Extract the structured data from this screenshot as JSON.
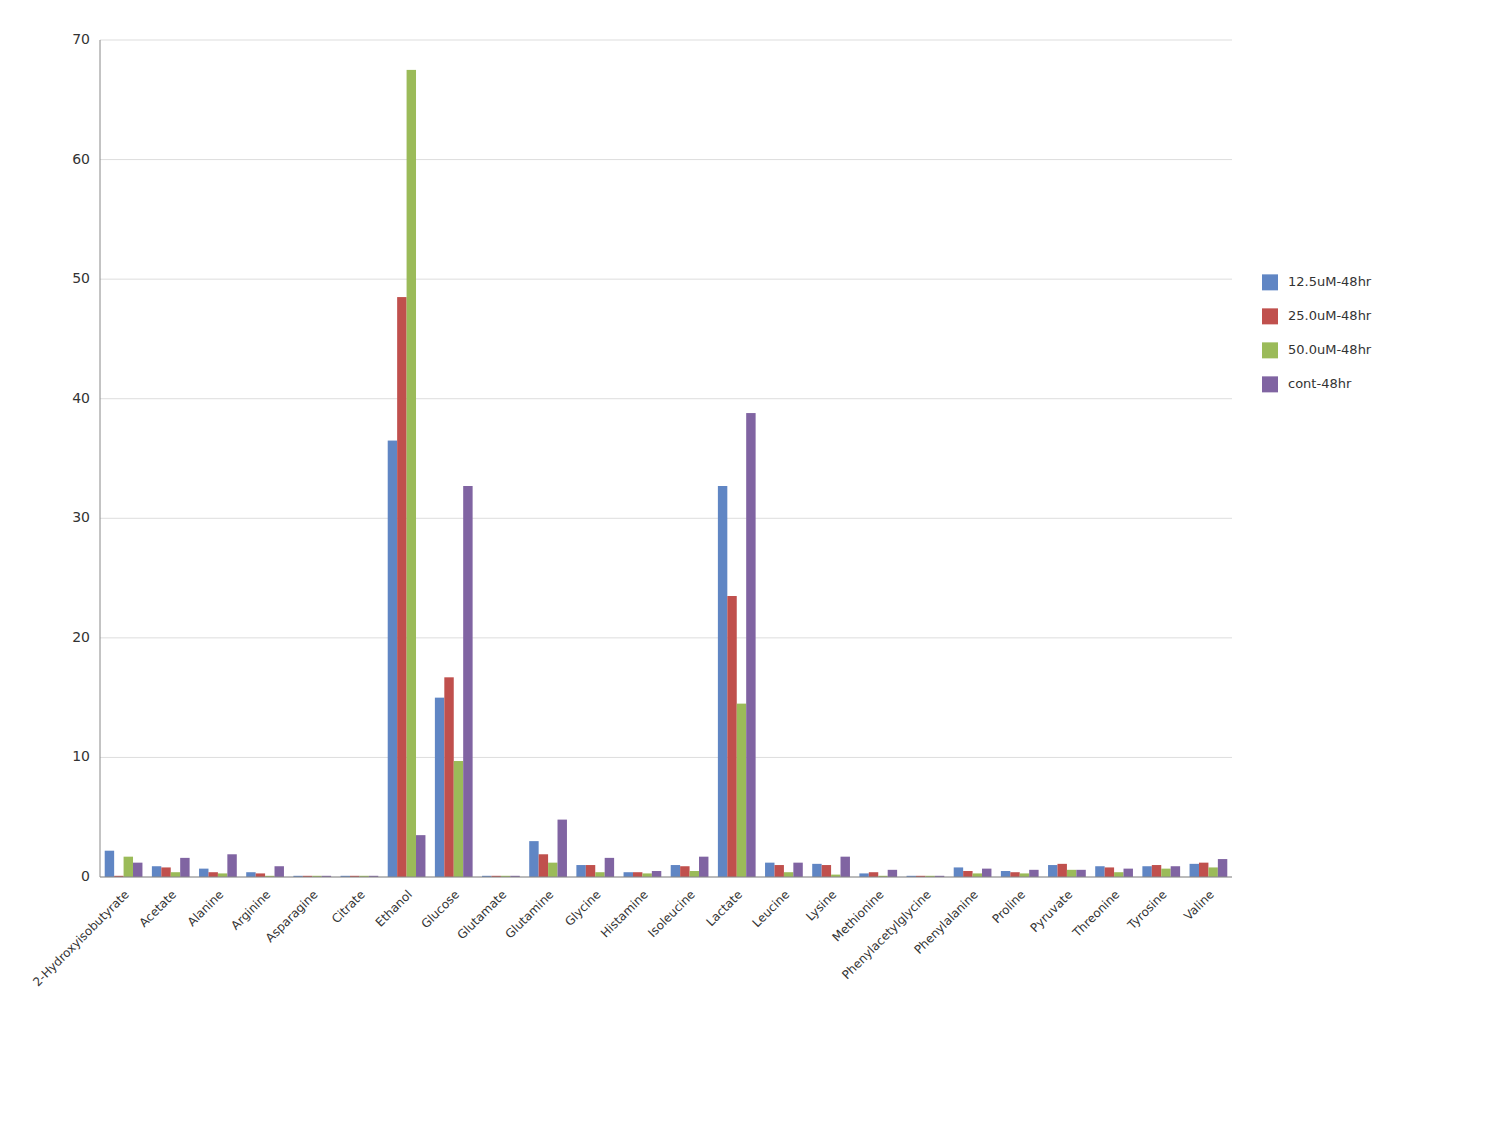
{
  "chart_data": {
    "type": "bar",
    "categories": [
      "2-Hydroxyisobutyrate",
      "Acetate",
      "Alanine",
      "Arginine",
      "Asparagine",
      "Citrate",
      "Ethanol",
      "Glucose",
      "Glutamate",
      "Glutamine",
      "Glycine",
      "Histamine",
      "Isoleucine",
      "Lactate",
      "Leucine",
      "Lysine",
      "Methionine",
      "Phenylacetylglycine",
      "Phenylalanine",
      "Proline",
      "Pyruvate",
      "Threonine",
      "Tyrosine",
      "Valine"
    ],
    "series": [
      {
        "name": "12.5uM-48hr",
        "color": "#6086c4",
        "values": [
          2.2,
          0.9,
          0.7,
          0.4,
          0.1,
          0.1,
          36.5,
          15.0,
          0.1,
          3.0,
          1.0,
          0.4,
          1.0,
          32.7,
          1.2,
          1.1,
          0.3,
          0.1,
          0.8,
          0.5,
          1.0,
          0.9,
          0.9,
          1.1
        ]
      },
      {
        "name": "25.0uM-48hr",
        "color": "#c0504d",
        "values": [
          0.1,
          0.8,
          0.4,
          0.3,
          0.1,
          0.1,
          48.5,
          16.7,
          0.1,
          1.9,
          1.0,
          0.4,
          0.9,
          23.5,
          1.0,
          1.0,
          0.4,
          0.1,
          0.5,
          0.4,
          1.1,
          0.8,
          1.0,
          1.2
        ]
      },
      {
        "name": "50.0uM-48hr",
        "color": "#9bbb59",
        "values": [
          1.7,
          0.4,
          0.3,
          0.1,
          0.1,
          0.1,
          67.5,
          9.7,
          0.1,
          1.2,
          0.4,
          0.3,
          0.5,
          14.5,
          0.4,
          0.2,
          0.1,
          0.1,
          0.3,
          0.3,
          0.6,
          0.4,
          0.7,
          0.8
        ]
      },
      {
        "name": "cont-48hr",
        "color": "#8064a2",
        "values": [
          1.2,
          1.6,
          1.9,
          0.9,
          0.1,
          0.1,
          3.5,
          32.7,
          0.1,
          4.8,
          1.6,
          0.5,
          1.7,
          38.8,
          1.2,
          1.7,
          0.6,
          0.1,
          0.7,
          0.6,
          0.6,
          0.7,
          0.9,
          1.5
        ]
      }
    ],
    "ylim": [
      0,
      70
    ],
    "yticks": [
      0,
      10,
      20,
      30,
      40,
      50,
      60,
      70
    ],
    "grid": true,
    "legend": "right"
  }
}
